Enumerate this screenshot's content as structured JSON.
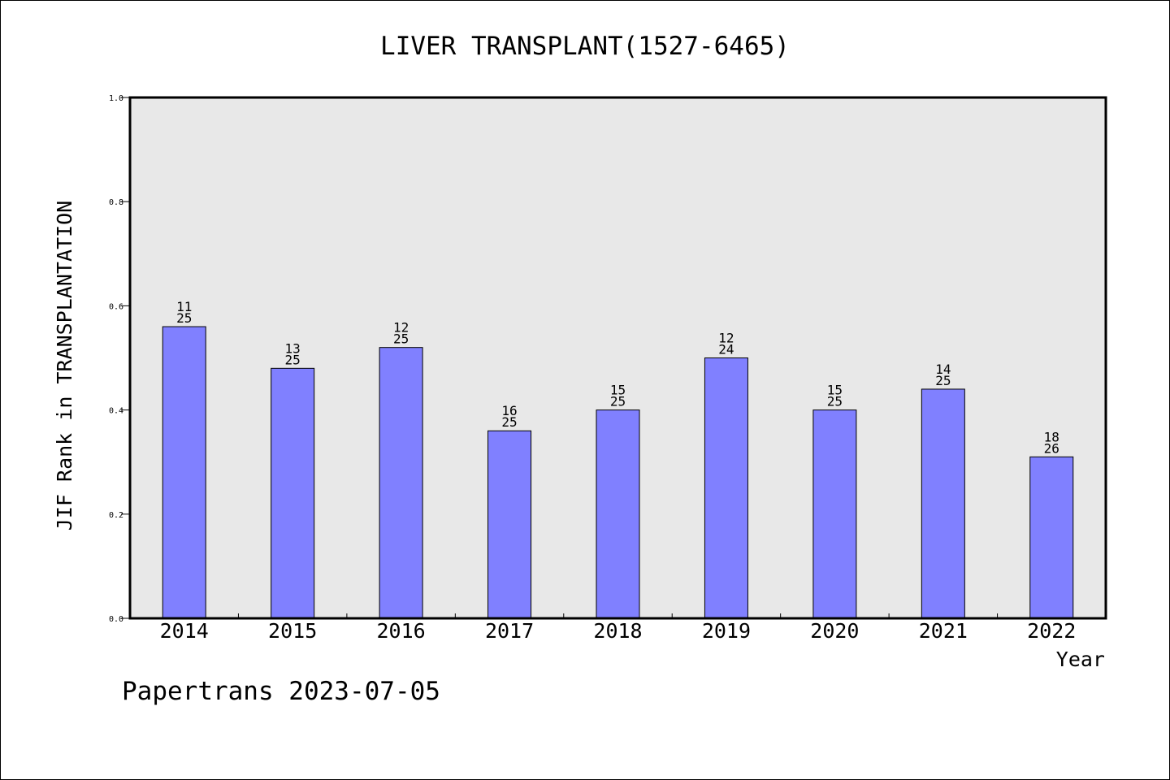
{
  "chart_data": {
    "type": "bar",
    "title": "LIVER TRANSPLANT(1527-6465)",
    "xlabel": "Year",
    "ylabel": "JIF Rank in TRANSPLANTATION",
    "categories": [
      "2014",
      "2015",
      "2016",
      "2017",
      "2018",
      "2019",
      "2020",
      "2021",
      "2022"
    ],
    "values": [
      0.56,
      0.48,
      0.52,
      0.36,
      0.4,
      0.5,
      0.4,
      0.44,
      0.31
    ],
    "labels_top": [
      "11",
      "13",
      "12",
      "16",
      "15",
      "12",
      "15",
      "14",
      "18"
    ],
    "labels_bottom": [
      "25",
      "25",
      "25",
      "25",
      "25",
      "24",
      "25",
      "25",
      "26"
    ],
    "ylim": [
      0,
      1.0
    ],
    "yticks": [
      "0.0",
      "0.2",
      "0.4",
      "0.6",
      "0.8",
      "1.0"
    ],
    "grid": false,
    "colors": {
      "bar": "#8080ff",
      "plot_background": "#e8e8e8"
    }
  },
  "footer": "Papertrans 2023-07-05"
}
